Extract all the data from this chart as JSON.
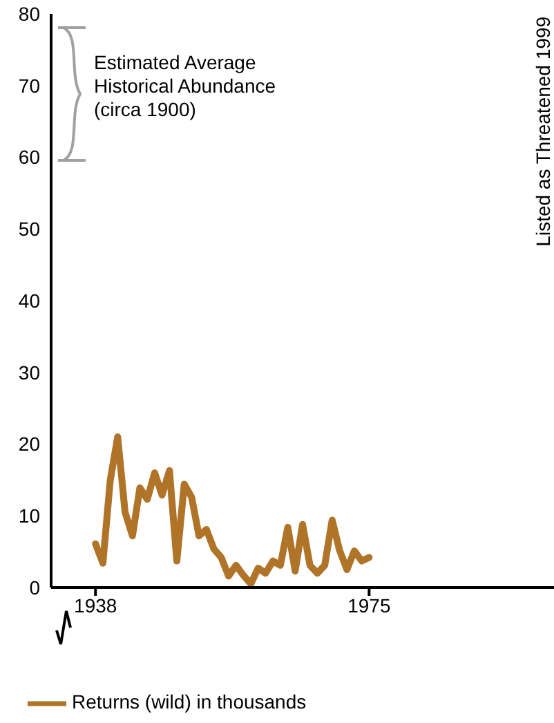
{
  "chart_data": {
    "type": "line",
    "x": [
      1938,
      1939,
      1940,
      1941,
      1942,
      1943,
      1944,
      1945,
      1946,
      1947,
      1948,
      1949,
      1950,
      1951,
      1952,
      1953,
      1954,
      1955,
      1956,
      1957,
      1958,
      1959,
      1960,
      1961,
      1962,
      1963,
      1964,
      1965,
      1966,
      1967,
      1968,
      1969,
      1970,
      1971,
      1972,
      1973,
      1974,
      1975
    ],
    "series": [
      {
        "name": "Returns (wild) in thousands",
        "color": "#b07428",
        "values": [
          6.1,
          3.4,
          15,
          21,
          10.5,
          7.2,
          13.9,
          12.3,
          16,
          12.9,
          16.3,
          3.7,
          14.4,
          12.6,
          7.2,
          8.1,
          5.4,
          4.2,
          1.6,
          3.1,
          1.7,
          0.5,
          2.7,
          2,
          3.7,
          3.1,
          8.4,
          2.3,
          8.8,
          3.1,
          2,
          3.1,
          9.4,
          5.2,
          2.5,
          5.1,
          3.7,
          4.2
        ]
      }
    ],
    "xlim": [
      1932,
      2000
    ],
    "xticks": [
      1938,
      1975
    ],
    "ylim": [
      0,
      80
    ],
    "yticks": [
      0,
      10,
      20,
      30,
      40,
      50,
      60,
      70,
      80
    ],
    "annotations": [
      "Estimated Average Historical Abundance (circa 1900)",
      "Listed as Threatened 1999"
    ],
    "grid": false,
    "legend": "bottom left",
    "marker": "none",
    "line_style": "solid"
  }
}
